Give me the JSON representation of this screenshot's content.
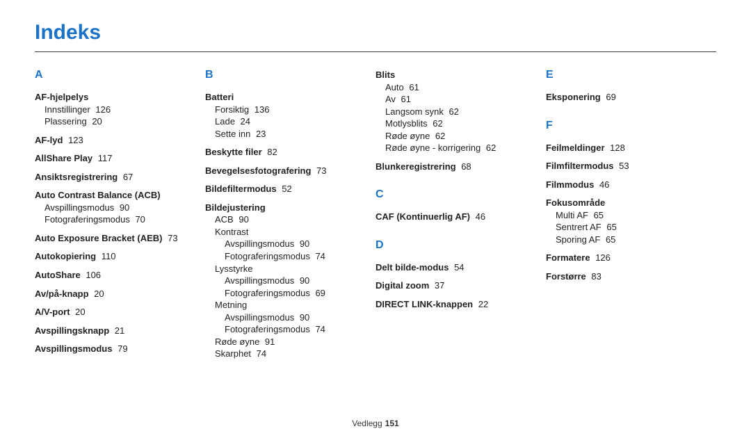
{
  "title": "Indeks",
  "footer": {
    "label": "Vedlegg",
    "page": "151"
  },
  "columns": [
    {
      "letters": [
        {
          "letter": "A",
          "entries": [
            {
              "head": "AF-hjelpelys",
              "subs": [
                {
                  "label": "Innstillinger",
                  "page": "126"
                },
                {
                  "label": "Plassering",
                  "page": "20"
                }
              ]
            },
            {
              "head": "AF-lyd",
              "page": "123"
            },
            {
              "head": "AllShare Play",
              "page": "117"
            },
            {
              "head": "Ansiktsregistrering",
              "page": "67"
            },
            {
              "head": "Auto Contrast Balance (ACB)",
              "subs": [
                {
                  "label": "Avspillingsmodus",
                  "page": "90"
                },
                {
                  "label": "Fotograferingsmodus",
                  "page": "70"
                }
              ]
            },
            {
              "head": "Auto Exposure Bracket (AEB)",
              "page": "73"
            },
            {
              "head": "Autokopiering",
              "page": "110"
            },
            {
              "head": "AutoShare",
              "page": "106"
            },
            {
              "head": "Av/på-knapp",
              "page": "20"
            },
            {
              "head": "A/V-port",
              "page": "20"
            },
            {
              "head": "Avspillingsknapp",
              "page": "21"
            },
            {
              "head": "Avspillingsmodus",
              "page": "79"
            }
          ]
        }
      ]
    },
    {
      "letters": [
        {
          "letter": "B",
          "entries": [
            {
              "head": "Batteri",
              "subs": [
                {
                  "label": "Forsiktig",
                  "page": "136"
                },
                {
                  "label": "Lade",
                  "page": "24"
                },
                {
                  "label": "Sette inn",
                  "page": "23"
                }
              ]
            },
            {
              "head": "Beskytte filer",
              "page": "82"
            },
            {
              "head": "Bevegelsesfotografering",
              "page": "73"
            },
            {
              "head": "Bildefiltermodus",
              "page": "52"
            },
            {
              "head": "Bildejustering",
              "subs": [
                {
                  "label": "ACB",
                  "page": "90"
                },
                {
                  "label": "Kontrast",
                  "subs": [
                    {
                      "label": "Avspillingsmodus",
                      "page": "90"
                    },
                    {
                      "label": "Fotograferingsmodus",
                      "page": "74"
                    }
                  ]
                },
                {
                  "label": "Lysstyrke",
                  "subs": [
                    {
                      "label": "Avspillingsmodus",
                      "page": "90"
                    },
                    {
                      "label": "Fotograferingsmodus",
                      "page": "69"
                    }
                  ]
                },
                {
                  "label": "Metning",
                  "subs": [
                    {
                      "label": "Avspillingsmodus",
                      "page": "90"
                    },
                    {
                      "label": "Fotograferingsmodus",
                      "page": "74"
                    }
                  ]
                },
                {
                  "label": "Røde øyne",
                  "page": "91"
                },
                {
                  "label": "Skarphet",
                  "page": "74"
                }
              ]
            }
          ]
        }
      ]
    },
    {
      "letters": [
        {
          "continuation": true,
          "entries": [
            {
              "head": "Blits",
              "subs": [
                {
                  "label": "Auto",
                  "page": "61"
                },
                {
                  "label": "Av",
                  "page": "61"
                },
                {
                  "label": "Langsom synk",
                  "page": "62"
                },
                {
                  "label": "Motlysblits",
                  "page": "62"
                },
                {
                  "label": "Røde øyne",
                  "page": "62"
                },
                {
                  "label": "Røde øyne - korrigering",
                  "page": "62"
                }
              ]
            },
            {
              "head": "Blunkeregistrering",
              "page": "68"
            }
          ]
        },
        {
          "letter": "C",
          "entries": [
            {
              "head": "CAF (Kontinuerlig AF)",
              "page": "46"
            }
          ]
        },
        {
          "letter": "D",
          "entries": [
            {
              "head": "Delt bilde-modus",
              "page": "54"
            },
            {
              "head": "Digital zoom",
              "page": "37"
            },
            {
              "head": "DIRECT LINK-knappen",
              "page": "22"
            }
          ]
        }
      ]
    },
    {
      "letters": [
        {
          "letter": "E",
          "entries": [
            {
              "head": "Eksponering",
              "page": "69"
            }
          ]
        },
        {
          "letter": "F",
          "entries": [
            {
              "head": "Feilmeldinger",
              "page": "128"
            },
            {
              "head": "Filmfiltermodus",
              "page": "53"
            },
            {
              "head": "Filmmodus",
              "page": "46"
            },
            {
              "head": "Fokusområde",
              "subs": [
                {
                  "label": "Multi AF",
                  "page": "65"
                },
                {
                  "label": "Sentrert AF",
                  "page": "65"
                },
                {
                  "label": "Sporing AF",
                  "page": "65"
                }
              ]
            },
            {
              "head": "Formatere",
              "page": "126"
            },
            {
              "head": "Forstørre",
              "page": "83"
            }
          ]
        }
      ]
    }
  ]
}
